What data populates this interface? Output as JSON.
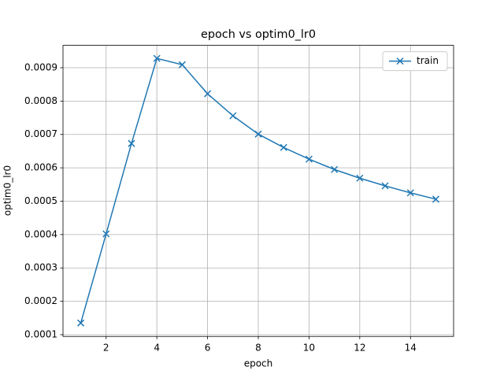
{
  "chart_data": {
    "type": "line",
    "title": "epoch vs optim0_lr0",
    "x_label": "epoch",
    "y_label": "optim0_lr0",
    "x": [
      1,
      2,
      3,
      4,
      5,
      6,
      7,
      8,
      9,
      10,
      11,
      12,
      13,
      14,
      15
    ],
    "series": [
      {
        "name": "train",
        "color": "#1f77b4",
        "marker": "x",
        "values": [
          0.000135,
          0.000402,
          0.000673,
          0.000928,
          0.000909,
          0.000822,
          0.000756,
          0.000701,
          0.000661,
          0.000626,
          0.000595,
          0.000569,
          0.000546,
          0.000525,
          0.000506
        ]
      }
    ],
    "xlim": [
      0.3,
      15.7
    ],
    "xticks": [
      2,
      4,
      6,
      8,
      10,
      12,
      14
    ],
    "ylim": [
      9.48e-05,
      0.000967
    ],
    "yticks": [
      0.0001,
      0.0002,
      0.0003,
      0.0004,
      0.0005,
      0.0006,
      0.0007,
      0.0008,
      0.0009
    ],
    "grid": true,
    "legend": "upper right"
  }
}
